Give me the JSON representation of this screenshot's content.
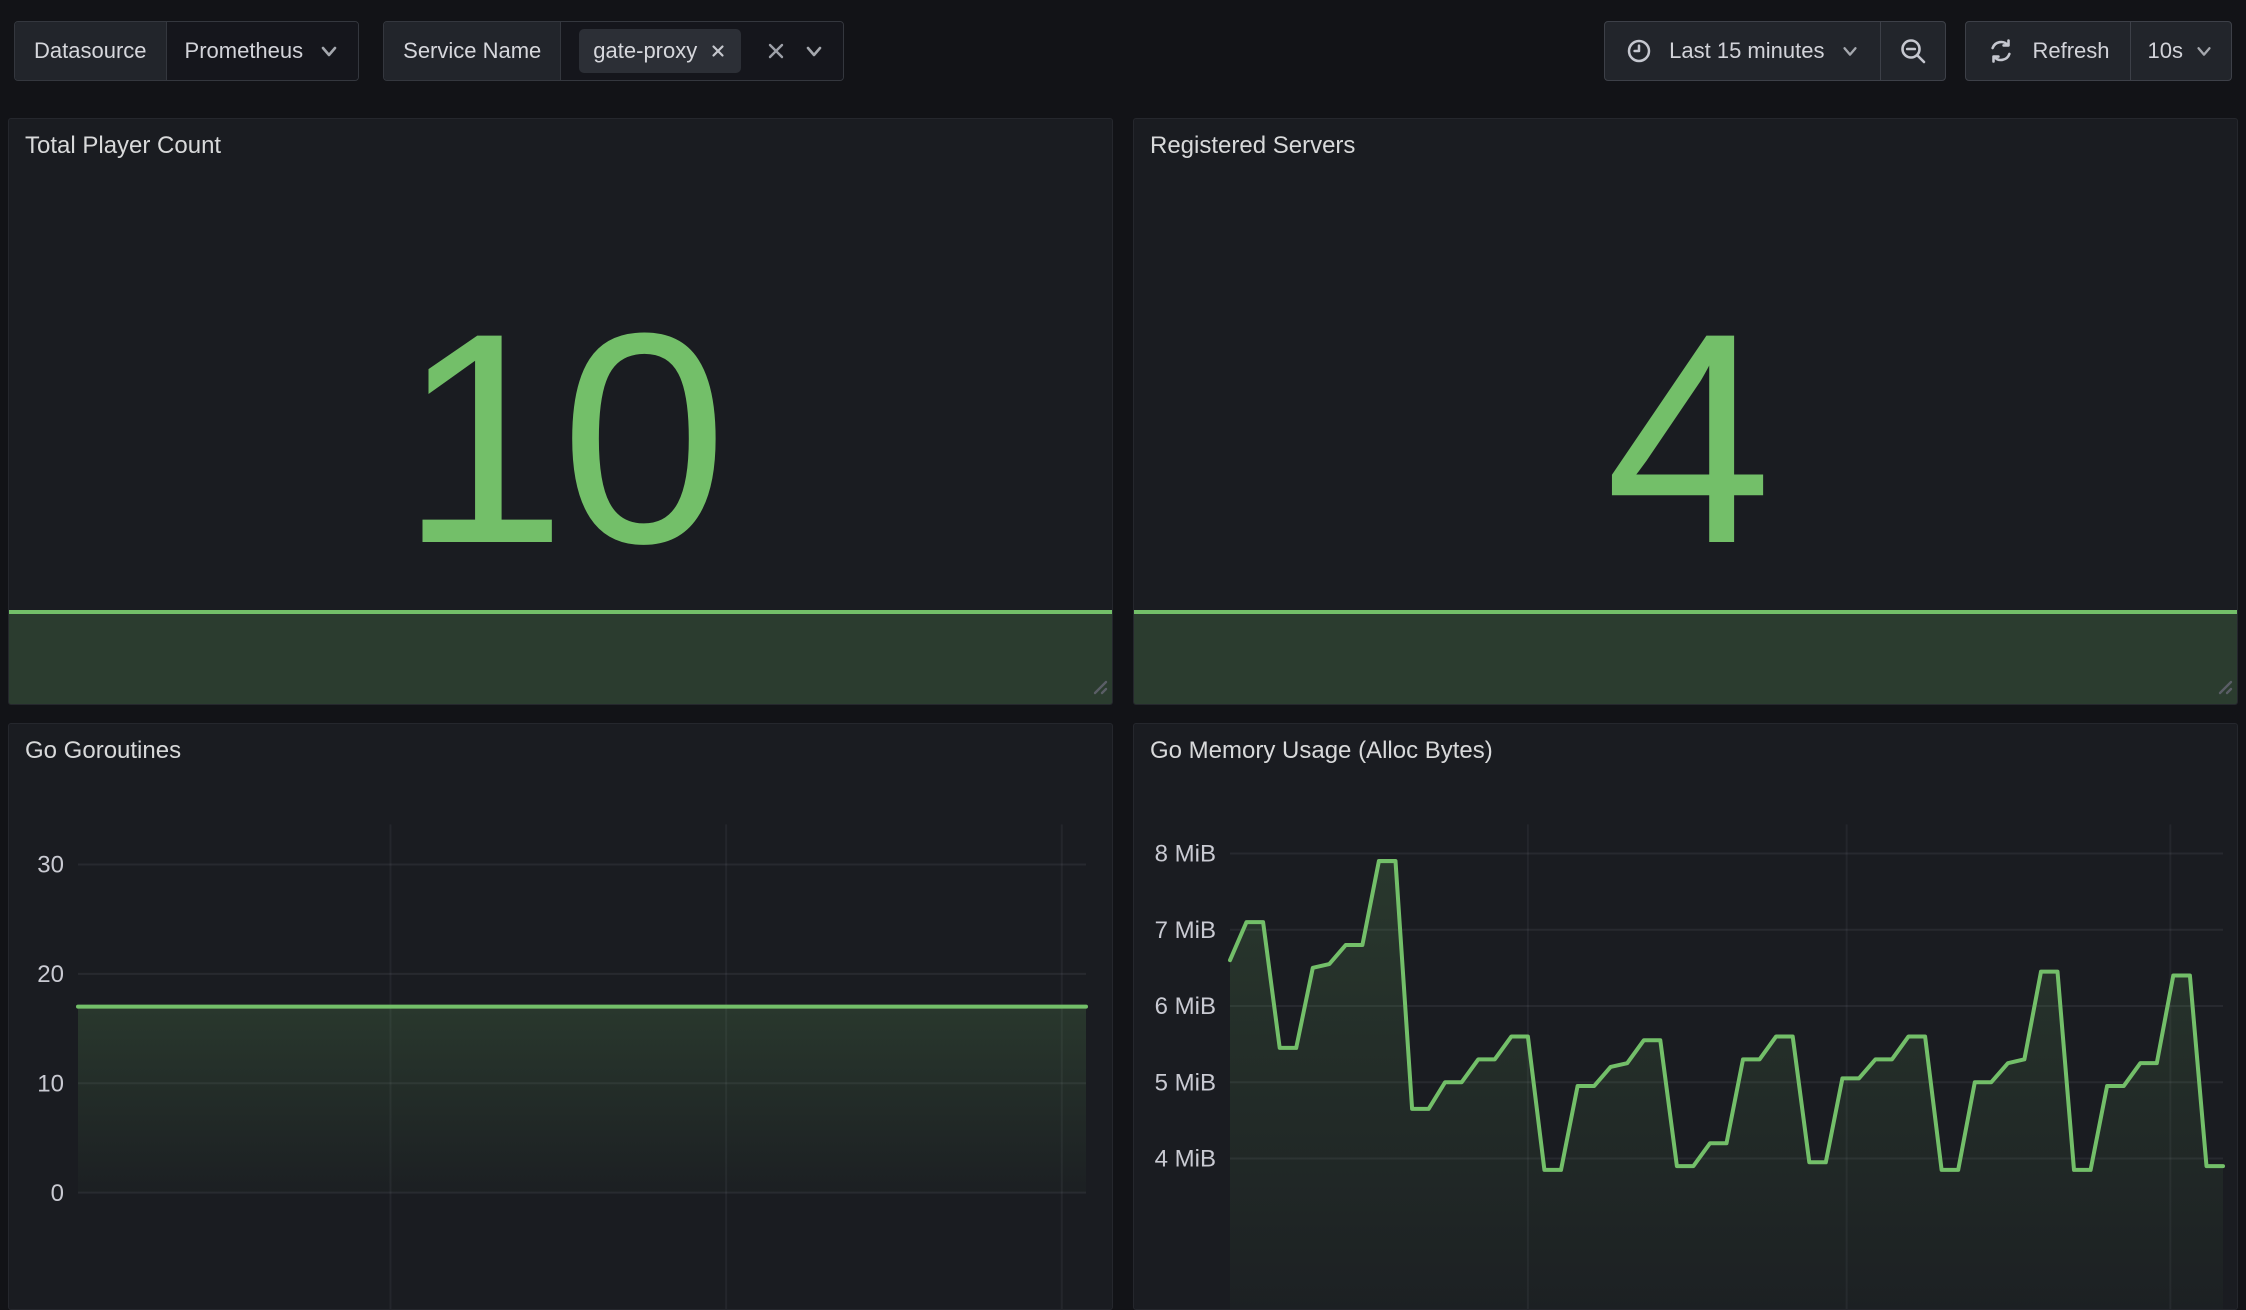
{
  "topbar": {
    "datasource_label": "Datasource",
    "datasource_value": "Prometheus",
    "service_name_label": "Service Name",
    "service_name_tag": "gate-proxy",
    "time_range_label": "Last 15 minutes",
    "refresh_label": "Refresh",
    "refresh_interval": "10s"
  },
  "panels": {
    "player_count": {
      "title": "Total Player Count",
      "value": "10",
      "sparkline": {
        "trend": "flat",
        "value": 10
      }
    },
    "registered_servers": {
      "title": "Registered Servers",
      "value": "4",
      "sparkline": {
        "trend": "flat",
        "value": 4
      }
    }
  },
  "colors": {
    "green": "#73bf69",
    "panel_bg": "#1a1c21",
    "page_bg": "#121317",
    "text": "#ccccdc"
  },
  "chart_data": [
    {
      "id": "goroutines",
      "type": "line",
      "title": "Go Goroutines",
      "xlabel": "",
      "ylabel": "",
      "x_range": "Last 15 minutes",
      "x_tick_labels": [],
      "ylim": [
        0,
        36
      ],
      "grid": true,
      "legend": "none",
      "y_ticks": [
        {
          "label": "0",
          "value": 0
        },
        {
          "label": "10",
          "value": 10
        },
        {
          "label": "20",
          "value": 20
        },
        {
          "label": "30",
          "value": 30
        }
      ],
      "series": [
        {
          "name": "goroutines",
          "color": "#73bf69",
          "values": [
            17,
            17,
            17,
            17,
            17,
            17,
            17,
            17,
            17,
            17,
            17,
            17,
            17,
            17,
            17,
            17,
            17,
            17,
            17,
            17,
            17,
            17,
            17,
            17,
            17,
            17,
            17,
            17,
            17,
            17,
            17,
            17,
            17,
            17,
            17,
            17,
            17,
            17,
            17,
            17,
            17,
            17,
            17,
            17,
            17,
            17,
            17,
            17,
            17,
            17,
            17,
            17,
            17,
            17,
            17,
            17,
            17,
            17,
            17,
            17,
            17
          ]
        }
      ]
    },
    {
      "id": "memory",
      "type": "line",
      "title": "Go Memory Usage (Alloc Bytes)",
      "xlabel": "",
      "ylabel": "MiB",
      "x_range": "Last 15 minutes",
      "x_tick_labels": [],
      "ylim": [
        3.4,
        8.5
      ],
      "grid": true,
      "legend": "none",
      "y_ticks": [
        {
          "label": "4 MiB",
          "value": 4
        },
        {
          "label": "5 MiB",
          "value": 5
        },
        {
          "label": "6 MiB",
          "value": 6
        },
        {
          "label": "7 MiB",
          "value": 7
        },
        {
          "label": "8 MiB",
          "value": 8
        }
      ],
      "series": [
        {
          "name": "alloc_bytes_mib",
          "color": "#73bf69",
          "values": [
            6.6,
            7.1,
            7.1,
            5.45,
            5.45,
            6.5,
            6.55,
            6.8,
            6.8,
            7.9,
            7.9,
            4.65,
            4.65,
            5.0,
            5.0,
            5.3,
            5.3,
            5.6,
            5.6,
            3.85,
            3.85,
            4.95,
            4.95,
            5.2,
            5.25,
            5.55,
            5.55,
            3.9,
            3.9,
            4.2,
            4.2,
            5.3,
            5.3,
            5.6,
            5.6,
            3.95,
            3.95,
            5.05,
            5.05,
            5.3,
            5.3,
            5.6,
            5.6,
            3.85,
            3.85,
            5.0,
            5.0,
            5.25,
            5.3,
            6.45,
            6.45,
            3.85,
            3.85,
            4.95,
            4.95,
            5.25,
            5.25,
            6.4,
            6.4,
            3.9,
            3.9
          ]
        }
      ]
    }
  ]
}
